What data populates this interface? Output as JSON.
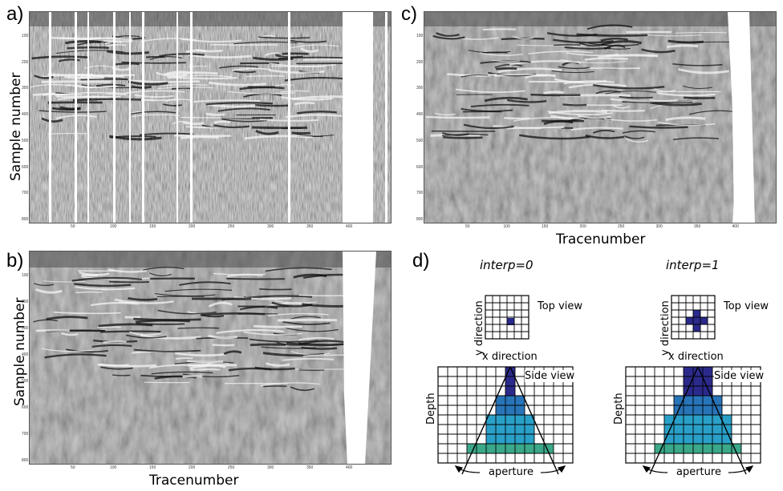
{
  "panels": {
    "a": {
      "letter": "a)",
      "ylabel": "Sample number",
      "xlabel": "",
      "yticks": [
        "100",
        "200",
        "300",
        "400",
        "500",
        "600",
        "700",
        "800"
      ],
      "xticks": [
        "50",
        "100",
        "150",
        "200",
        "250",
        "300",
        "350",
        "400"
      ]
    },
    "b": {
      "letter": "b)",
      "ylabel": "Sample number",
      "xlabel": "Tracenumber",
      "yticks": [
        "100",
        "200",
        "300",
        "400",
        "500",
        "600",
        "700",
        "800"
      ],
      "xticks": [
        "50",
        "100",
        "150",
        "200",
        "250",
        "300",
        "350",
        "400"
      ]
    },
    "c": {
      "letter": "c)",
      "ylabel": "",
      "xlabel": "Tracenumber",
      "yticks": [
        "100",
        "200",
        "300",
        "400",
        "500",
        "600",
        "700",
        "800"
      ],
      "xticks": [
        "50",
        "100",
        "150",
        "200",
        "250",
        "300",
        "350",
        "400"
      ]
    },
    "d": {
      "letter": "d)"
    }
  },
  "diagram": {
    "left": {
      "title": "interp=0",
      "top_view": "Top view",
      "side_view": "Side view",
      "y_direction": "y direction",
      "x_direction": "x direction",
      "depth": "Depth",
      "aperture": "aperture"
    },
    "right": {
      "title": "interp=1",
      "top_view": "Top view",
      "side_view": "Side view",
      "y_direction": "y direction",
      "x_direction": "x direction",
      "depth": "Depth",
      "aperture": "aperture"
    }
  },
  "colors": {
    "dark_blue": "#2b2a8c",
    "mid_blue": "#2874b8",
    "light_blue": "#2aa0c8",
    "teal": "#3aa889",
    "seismic_gray": "#8c8c8c"
  }
}
